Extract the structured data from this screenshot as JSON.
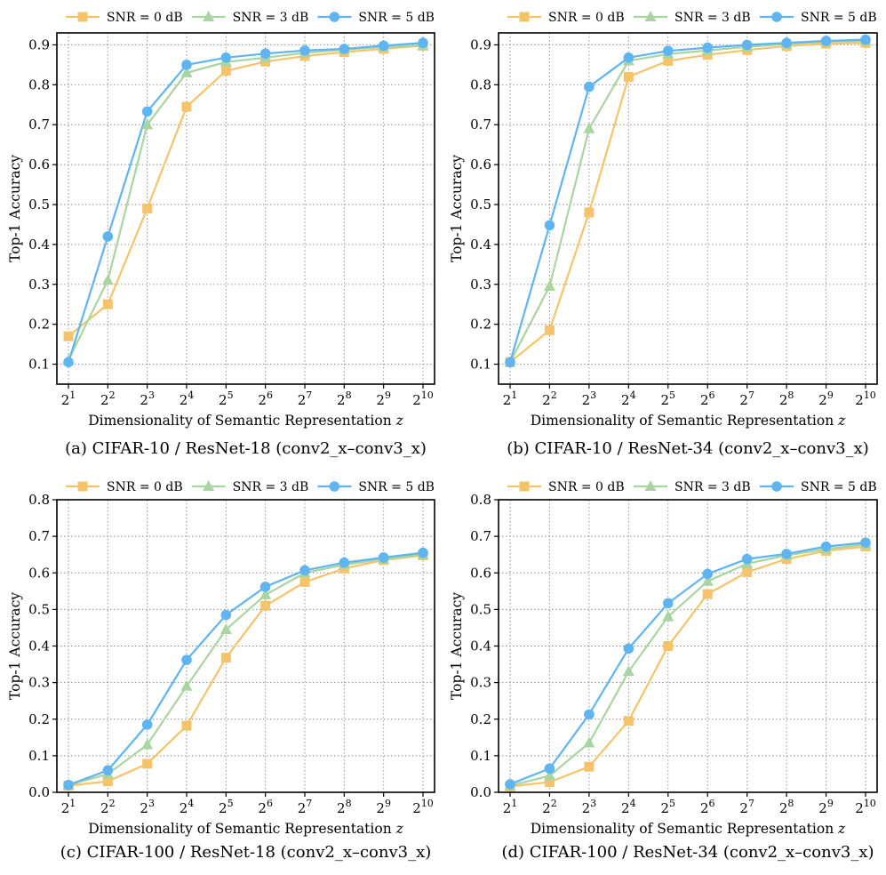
{
  "legend_labels": [
    "SNR = 0 dB",
    "SNR = 3 dB",
    "SNR = 5 dB"
  ],
  "colors": {
    "snr0": "#F5C46A",
    "snr3": "#A8D5A0",
    "snr5": "#5FB4F2",
    "grid": "#8a8a8a"
  },
  "chart_data": [
    {
      "type": "line",
      "caption": "(a) CIFAR-10 / ResNet-18 (conv2_x–conv3_x)",
      "xlabel": "Dimensionality of Semantic Representation",
      "xlabel_var": "z",
      "ylabel": "Top-1 Accuracy",
      "x_base": "2",
      "x_exponents": [
        "1",
        "2",
        "3",
        "4",
        "5",
        "6",
        "7",
        "8",
        "9",
        "10"
      ],
      "ylim": [
        0.05,
        0.93
      ],
      "yticks": [
        0.1,
        0.2,
        0.3,
        0.4,
        0.5,
        0.6,
        0.7,
        0.8,
        0.9
      ],
      "ytick_labels": [
        "0.1",
        "0.2",
        "0.3",
        "0.4",
        "0.5",
        "0.6",
        "0.7",
        "0.8",
        "0.9"
      ],
      "legend_position": "top-outside",
      "series": [
        {
          "name": "SNR = 0 dB",
          "marker": "square",
          "values": [
            0.17,
            0.25,
            0.49,
            0.745,
            0.835,
            0.858,
            0.872,
            0.882,
            0.89,
            0.898
          ]
        },
        {
          "name": "SNR = 3 dB",
          "marker": "triangle",
          "values": [
            0.11,
            0.31,
            0.7,
            0.83,
            0.857,
            0.868,
            0.88,
            0.888,
            0.895,
            0.898
          ]
        },
        {
          "name": "SNR = 5 dB",
          "marker": "circle",
          "values": [
            0.105,
            0.42,
            0.733,
            0.85,
            0.868,
            0.878,
            0.886,
            0.89,
            0.898,
            0.905
          ]
        }
      ]
    },
    {
      "type": "line",
      "caption": "(b) CIFAR-10 / ResNet-34 (conv2_x–conv3_x)",
      "xlabel": "Dimensionality of Semantic Representation",
      "xlabel_var": "z",
      "ylabel": "Top-1 Accuracy",
      "x_base": "2",
      "x_exponents": [
        "1",
        "2",
        "3",
        "4",
        "5",
        "6",
        "7",
        "8",
        "9",
        "10"
      ],
      "ylim": [
        0.05,
        0.93
      ],
      "yticks": [
        0.1,
        0.2,
        0.3,
        0.4,
        0.5,
        0.6,
        0.7,
        0.8,
        0.9
      ],
      "ytick_labels": [
        "0.1",
        "0.2",
        "0.3",
        "0.4",
        "0.5",
        "0.6",
        "0.7",
        "0.8",
        "0.9"
      ],
      "legend_position": "top-outside",
      "series": [
        {
          "name": "SNR = 0 dB",
          "marker": "square",
          "values": [
            0.105,
            0.185,
            0.48,
            0.82,
            0.86,
            0.875,
            0.887,
            0.897,
            0.903,
            0.905
          ]
        },
        {
          "name": "SNR = 3 dB",
          "marker": "triangle",
          "values": [
            0.105,
            0.295,
            0.69,
            0.86,
            0.877,
            0.886,
            0.895,
            0.902,
            0.908,
            0.91
          ]
        },
        {
          "name": "SNR = 5 dB",
          "marker": "circle",
          "values": [
            0.105,
            0.448,
            0.795,
            0.868,
            0.885,
            0.893,
            0.9,
            0.905,
            0.91,
            0.913
          ]
        }
      ]
    },
    {
      "type": "line",
      "caption": "(c) CIFAR-100 / ResNet-18 (conv2_x–conv3_x)",
      "xlabel": "Dimensionality of Semantic Representation",
      "xlabel_var": "z",
      "ylabel": "Top-1 Accuracy",
      "x_base": "2",
      "x_exponents": [
        "1",
        "2",
        "3",
        "4",
        "5",
        "6",
        "7",
        "8",
        "9",
        "10"
      ],
      "ylim": [
        0.0,
        0.8
      ],
      "yticks": [
        0.0,
        0.1,
        0.2,
        0.3,
        0.4,
        0.5,
        0.6,
        0.7,
        0.8
      ],
      "ytick_labels": [
        "0.0",
        "0.1",
        "0.2",
        "0.3",
        "0.4",
        "0.5",
        "0.6",
        "0.7",
        "0.8"
      ],
      "legend_position": "top-outside",
      "series": [
        {
          "name": "SNR = 0 dB",
          "marker": "square",
          "values": [
            0.018,
            0.03,
            0.078,
            0.182,
            0.368,
            0.51,
            0.575,
            0.612,
            0.635,
            0.648
          ]
        },
        {
          "name": "SNR = 3 dB",
          "marker": "triangle",
          "values": [
            0.02,
            0.05,
            0.13,
            0.29,
            0.445,
            0.54,
            0.6,
            0.622,
            0.638,
            0.65
          ]
        },
        {
          "name": "SNR = 5 dB",
          "marker": "circle",
          "values": [
            0.02,
            0.06,
            0.185,
            0.362,
            0.485,
            0.562,
            0.607,
            0.628,
            0.642,
            0.655
          ]
        }
      ]
    },
    {
      "type": "line",
      "caption": "(d) CIFAR-100 / ResNet-34 (conv2_x–conv3_x)",
      "xlabel": "Dimensionality of Semantic Representation",
      "xlabel_var": "z",
      "ylabel": "Top-1 Accuracy",
      "x_base": "2",
      "x_exponents": [
        "1",
        "2",
        "3",
        "4",
        "5",
        "6",
        "7",
        "8",
        "9",
        "10"
      ],
      "ylim": [
        0.0,
        0.8
      ],
      "yticks": [
        0.0,
        0.1,
        0.2,
        0.3,
        0.4,
        0.5,
        0.6,
        0.7,
        0.8
      ],
      "ytick_labels": [
        "0.0",
        "0.1",
        "0.2",
        "0.3",
        "0.4",
        "0.5",
        "0.6",
        "0.7",
        "0.8"
      ],
      "legend_position": "top-outside",
      "series": [
        {
          "name": "SNR = 0 dB",
          "marker": "square",
          "values": [
            0.016,
            0.028,
            0.07,
            0.195,
            0.4,
            0.542,
            0.602,
            0.638,
            0.66,
            0.672
          ]
        },
        {
          "name": "SNR = 3 dB",
          "marker": "triangle",
          "values": [
            0.018,
            0.045,
            0.135,
            0.33,
            0.48,
            0.577,
            0.625,
            0.648,
            0.665,
            0.678
          ]
        },
        {
          "name": "SNR = 5 dB",
          "marker": "circle",
          "values": [
            0.022,
            0.065,
            0.213,
            0.393,
            0.517,
            0.597,
            0.638,
            0.652,
            0.672,
            0.683
          ]
        }
      ]
    }
  ]
}
